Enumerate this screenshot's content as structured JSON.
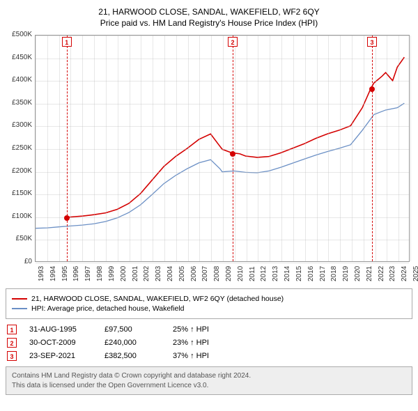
{
  "title_line1": "21, HARWOOD CLOSE, SANDAL, WAKEFIELD, WF2 6QY",
  "title_line2": "Price paid vs. HM Land Registry's House Price Index (HPI)",
  "chart": {
    "type": "line",
    "background_color": "#ffffff",
    "grid_color": "#bbbbbb",
    "x": {
      "min": 1993,
      "max": 2025,
      "ticks": [
        1993,
        1994,
        1995,
        1996,
        1997,
        1998,
        1999,
        2000,
        2001,
        2002,
        2003,
        2004,
        2005,
        2006,
        2007,
        2008,
        2009,
        2010,
        2011,
        2012,
        2013,
        2014,
        2015,
        2016,
        2017,
        2018,
        2019,
        2020,
        2021,
        2022,
        2023,
        2024,
        2025
      ]
    },
    "y": {
      "min": 0,
      "max": 500000,
      "ticks": [
        0,
        50000,
        100000,
        150000,
        200000,
        250000,
        300000,
        350000,
        400000,
        450000,
        500000
      ],
      "tick_labels": [
        "£0",
        "£50K",
        "£100K",
        "£150K",
        "£200K",
        "£250K",
        "£300K",
        "£350K",
        "£400K",
        "£450K",
        "£500K"
      ]
    },
    "series": [
      {
        "name": "21, HARWOOD CLOSE, SANDAL, WAKEFIELD, WF2 6QY (detached house)",
        "color": "#d40000",
        "line_width": 1.6,
        "points": [
          [
            1995.66,
            97500
          ],
          [
            1996,
            98000
          ],
          [
            1997,
            100000
          ],
          [
            1998,
            103000
          ],
          [
            1999,
            107000
          ],
          [
            2000,
            115000
          ],
          [
            2001,
            128000
          ],
          [
            2002,
            150000
          ],
          [
            2003,
            180000
          ],
          [
            2004,
            210000
          ],
          [
            2005,
            232000
          ],
          [
            2006,
            250000
          ],
          [
            2007,
            270000
          ],
          [
            2008,
            282000
          ],
          [
            2008.7,
            258000
          ],
          [
            2009,
            248000
          ],
          [
            2009.83,
            240000
          ],
          [
            2010.5,
            238000
          ],
          [
            2011,
            233000
          ],
          [
            2012,
            230000
          ],
          [
            2013,
            232000
          ],
          [
            2014,
            240000
          ],
          [
            2015,
            250000
          ],
          [
            2016,
            260000
          ],
          [
            2017,
            272000
          ],
          [
            2018,
            282000
          ],
          [
            2019,
            290000
          ],
          [
            2020,
            300000
          ],
          [
            2021,
            340000
          ],
          [
            2021.73,
            382500
          ],
          [
            2022,
            395000
          ],
          [
            2022.7,
            410000
          ],
          [
            2023,
            418000
          ],
          [
            2023.6,
            400000
          ],
          [
            2024,
            430000
          ],
          [
            2024.6,
            452000
          ]
        ]
      },
      {
        "name": "HPI: Average price, detached house, Wakefield",
        "color": "#6a8fc5",
        "line_width": 1.3,
        "points": [
          [
            1993,
            73000
          ],
          [
            1994,
            74000
          ],
          [
            1995,
            76000
          ],
          [
            1996,
            78000
          ],
          [
            1997,
            80000
          ],
          [
            1998,
            83000
          ],
          [
            1999,
            88000
          ],
          [
            2000,
            96000
          ],
          [
            2001,
            108000
          ],
          [
            2002,
            125000
          ],
          [
            2003,
            148000
          ],
          [
            2004,
            172000
          ],
          [
            2005,
            190000
          ],
          [
            2006,
            205000
          ],
          [
            2007,
            218000
          ],
          [
            2008,
            225000
          ],
          [
            2008.8,
            205000
          ],
          [
            2009,
            198000
          ],
          [
            2010,
            200000
          ],
          [
            2011,
            197000
          ],
          [
            2012,
            196000
          ],
          [
            2013,
            200000
          ],
          [
            2014,
            208000
          ],
          [
            2015,
            217000
          ],
          [
            2016,
            226000
          ],
          [
            2017,
            235000
          ],
          [
            2018,
            243000
          ],
          [
            2019,
            250000
          ],
          [
            2020,
            258000
          ],
          [
            2021,
            290000
          ],
          [
            2022,
            325000
          ],
          [
            2023,
            335000
          ],
          [
            2024,
            340000
          ],
          [
            2024.6,
            350000
          ]
        ]
      }
    ],
    "markers": [
      {
        "n": "1",
        "year": 1995.66,
        "price": 97500,
        "color": "#d40000"
      },
      {
        "n": "2",
        "year": 2009.83,
        "price": 240000,
        "color": "#d40000"
      },
      {
        "n": "3",
        "year": 2021.73,
        "price": 382500,
        "color": "#d40000"
      }
    ]
  },
  "legend": {
    "items": [
      {
        "color": "#d40000",
        "label": "21, HARWOOD CLOSE, SANDAL, WAKEFIELD, WF2 6QY (detached house)"
      },
      {
        "color": "#6a8fc5",
        "label": "HPI: Average price, detached house, Wakefield"
      }
    ]
  },
  "events": [
    {
      "n": "1",
      "color": "#d40000",
      "date": "31-AUG-1995",
      "price": "£97,500",
      "delta": "25% ↑ HPI"
    },
    {
      "n": "2",
      "color": "#d40000",
      "date": "30-OCT-2009",
      "price": "£240,000",
      "delta": "23% ↑ HPI"
    },
    {
      "n": "3",
      "color": "#d40000",
      "date": "23-SEP-2021",
      "price": "£382,500",
      "delta": "37% ↑ HPI"
    }
  ],
  "footer_line1": "Contains HM Land Registry data © Crown copyright and database right 2024.",
  "footer_line2": "This data is licensed under the Open Government Licence v3.0."
}
